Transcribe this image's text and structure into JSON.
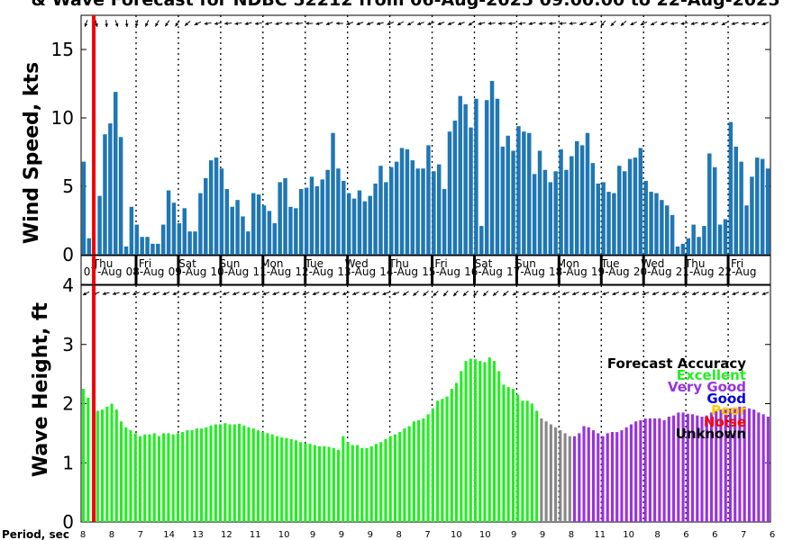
{
  "title": "& Wave Forecast for NDBC 52212 from 06-Aug-2025 09:00:00 to 22-Aug-2025",
  "period_label": "Period, sec",
  "colors": {
    "wind_bar": "#1f77b4",
    "current_time_line": "#ee0000",
    "Excellent": "#22ee22",
    "Very Good": "#9933dd",
    "Good": "#0000dd",
    "Poor": "#ffcc00",
    "Noise": "#ff0000",
    "Unknown": "#000000",
    "transition": "#888888"
  },
  "legend": {
    "title": "Forecast Accuracy",
    "items": [
      "Excellent",
      "Very Good",
      "Good",
      "Poor",
      "Noise",
      "Unknown"
    ]
  },
  "chart_data": [
    {
      "type": "bar",
      "name": "wind",
      "ylabel": "Wind Speed, kts",
      "ylim": [
        0,
        17.5
      ],
      "yticks": [
        0,
        5,
        10,
        15
      ],
      "xlim_days": [
        0,
        16.3
      ],
      "current_time_day": 0.3,
      "values": [
        6.8,
        1.2,
        0,
        4.3,
        8.8,
        9.6,
        11.9,
        8.6,
        0.6,
        3.5,
        2.2,
        1.3,
        1.3,
        0.8,
        0.8,
        2.2,
        4.7,
        3.8,
        2.3,
        3.4,
        1.7,
        1.7,
        4.5,
        5.6,
        6.9,
        7.1,
        6.3,
        4.8,
        3.5,
        4.0,
        2.8,
        1.7,
        4.5,
        4.4,
        3.6,
        3.2,
        2.3,
        5.3,
        5.6,
        3.5,
        3.4,
        4.8,
        4.9,
        5.7,
        5.0,
        5.5,
        6.2,
        8.9,
        6.3,
        5.4,
        4.5,
        4.1,
        4.7,
        3.9,
        4.3,
        5.2,
        6.5,
        5.3,
        6.4,
        6.8,
        7.8,
        7.7,
        6.9,
        6.3,
        6.3,
        8.0,
        6.1,
        6.6,
        4.8,
        9.0,
        9.8,
        11.6,
        11.0,
        9.3,
        11.4,
        2.1,
        11.3,
        12.7,
        11.4,
        7.9,
        8.7,
        7.6,
        9.4,
        9.0,
        8.9,
        5.9,
        7.6,
        6.2,
        5.3,
        6.1,
        7.7,
        6.2,
        7.2,
        8.3,
        8.0,
        8.9,
        6.7,
        5.2,
        5.3,
        4.6,
        4.5,
        6.5,
        6.1,
        7.0,
        7.1,
        7.8,
        5.4,
        4.6,
        4.5,
        4.0,
        3.6,
        2.9,
        0.6,
        0.8,
        1.2,
        2.2,
        1.3,
        2.1,
        7.4,
        6.4,
        2.2,
        2.6,
        9.7,
        7.9,
        6.8,
        3.6,
        5.7,
        7.1,
        7.0,
        6.3
      ],
      "day_labels": [
        "Thu",
        "Fri",
        "Sat",
        "Sun",
        "Mon",
        "Tue",
        "Wed",
        "Thu",
        "Fri",
        "Sat",
        "Sun",
        "Mon",
        "Tue",
        "Wed",
        "Thu",
        "Fri"
      ],
      "date_labels": [
        "07-Aug",
        "08-Aug",
        "09-Aug",
        "10-Aug",
        "11-Aug",
        "12-Aug",
        "13-Aug",
        "14-Aug",
        "15-Aug",
        "16-Aug",
        "17-Aug",
        "18-Aug",
        "19-Aug",
        "20-Aug",
        "21-Aug",
        "22-Aug"
      ],
      "direction_deg": [
        200,
        165,
        175,
        160,
        175,
        195,
        205,
        210,
        215,
        215,
        230,
        245,
        260,
        260,
        265,
        260,
        255,
        260,
        255,
        255,
        260,
        265,
        270,
        255,
        250,
        270,
        250,
        250,
        250,
        255,
        250,
        240,
        240,
        250,
        250,
        250,
        250,
        250,
        235,
        255,
        265,
        265,
        265,
        260,
        255,
        260,
        265,
        265,
        265,
        250,
        245,
        220,
        225,
        230,
        245,
        245,
        240,
        250,
        260,
        260,
        255,
        255,
        250,
        245,
        255,
        260,
        255,
        250
      ]
    },
    {
      "type": "bar",
      "name": "wave",
      "ylabel": "Wave Height, ft",
      "ylim": [
        0,
        4
      ],
      "yticks": [
        0,
        1,
        2,
        3,
        4
      ],
      "xlim_days": [
        0,
        16.3
      ],
      "current_time_day": 0.3,
      "values": [
        2.25,
        2.1,
        0,
        1.88,
        1.9,
        1.95,
        2.0,
        1.9,
        1.7,
        1.6,
        1.55,
        1.5,
        1.45,
        1.48,
        1.48,
        1.5,
        1.45,
        1.5,
        1.5,
        1.48,
        1.5,
        1.52,
        1.55,
        1.55,
        1.58,
        1.58,
        1.6,
        1.63,
        1.65,
        1.65,
        1.67,
        1.65,
        1.65,
        1.66,
        1.63,
        1.6,
        1.58,
        1.55,
        1.52,
        1.5,
        1.48,
        1.45,
        1.43,
        1.42,
        1.4,
        1.38,
        1.35,
        1.33,
        1.32,
        1.3,
        1.28,
        1.28,
        1.27,
        1.25,
        1.22,
        1.45,
        1.35,
        1.3,
        1.3,
        1.25,
        1.25,
        1.28,
        1.32,
        1.35,
        1.4,
        1.45,
        1.48,
        1.52,
        1.58,
        1.62,
        1.7,
        1.72,
        1.75,
        1.82,
        1.92,
        2.05,
        2.08,
        2.12,
        2.25,
        2.35,
        2.55,
        2.72,
        2.76,
        2.75,
        2.72,
        2.7,
        2.78,
        2.72,
        2.55,
        2.32,
        2.28,
        2.25,
        2.15,
        2.05,
        2.05,
        2.0,
        1.88,
        1.75,
        1.7,
        1.65,
        1.6,
        1.55,
        1.5,
        1.45,
        1.45,
        1.5,
        1.62,
        1.6,
        1.55,
        1.5,
        1.45,
        1.5,
        1.52,
        1.52,
        1.55,
        1.6,
        1.65,
        1.7,
        1.72,
        1.75,
        1.75,
        1.75,
        1.75,
        1.72,
        1.78,
        1.8,
        1.85,
        1.85,
        1.83,
        1.82,
        1.8,
        1.78,
        1.8,
        1.85,
        1.9,
        1.9,
        1.9,
        1.92,
        1.92,
        1.95,
        1.95,
        1.92,
        1.9,
        1.85,
        1.82,
        1.78
      ],
      "accuracy_segments": [
        {
          "category": "Excellent",
          "count": 97
        },
        {
          "category": "transition",
          "count": 7
        },
        {
          "category": "Very Good",
          "count": 60
        }
      ],
      "period_sec": [
        8,
        8,
        7,
        14,
        13,
        12,
        11,
        10,
        9,
        9,
        9,
        8,
        7,
        10,
        10,
        9,
        9,
        8,
        11,
        10,
        8,
        6,
        6,
        7,
        6
      ],
      "direction_deg": [
        245,
        250,
        255,
        255,
        255,
        250,
        250,
        250,
        250,
        250,
        250,
        250,
        250,
        250,
        250,
        250,
        250,
        250,
        250,
        250,
        250,
        250,
        250,
        250,
        250,
        250,
        250,
        250,
        250,
        250,
        250,
        250,
        235,
        230,
        230,
        225,
        220,
        220,
        225,
        220,
        225,
        230,
        230,
        240,
        245,
        250,
        250,
        250,
        250,
        250,
        250,
        250,
        250,
        250,
        250,
        250,
        250,
        250,
        250,
        250,
        250,
        250,
        250,
        250,
        250,
        250,
        250,
        250,
        250
      ]
    }
  ]
}
